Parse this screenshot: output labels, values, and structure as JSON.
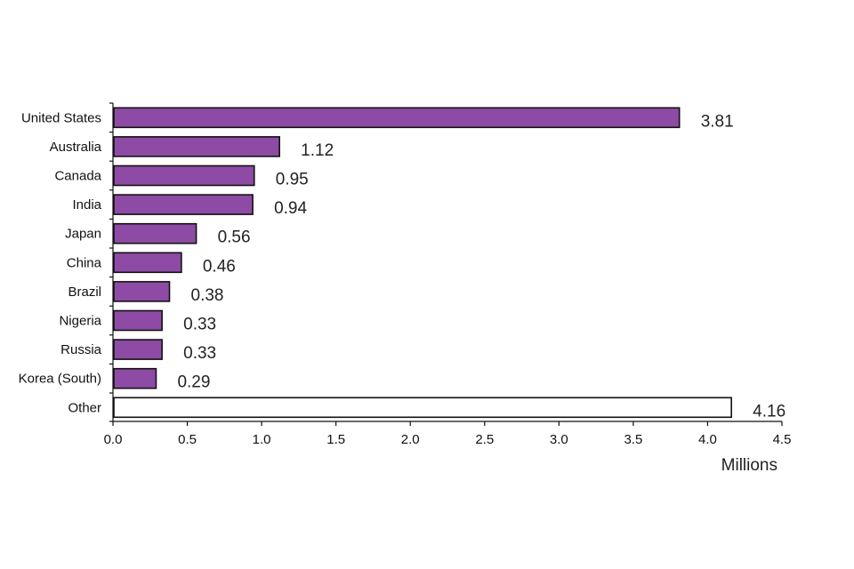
{
  "chart_data": {
    "type": "bar",
    "orientation": "horizontal",
    "categories": [
      "United States",
      "Australia",
      "Canada",
      "India",
      "Japan",
      "China",
      "Brazil",
      "Nigeria",
      "Russia",
      "Korea (South)",
      "Other"
    ],
    "values": [
      3.81,
      1.12,
      0.95,
      0.94,
      0.56,
      0.46,
      0.38,
      0.33,
      0.33,
      0.29,
      4.16
    ],
    "value_labels": [
      "3.81",
      "1.12",
      "0.95",
      "0.94",
      "0.56",
      "0.46",
      "0.38",
      "0.33",
      "0.33",
      "0.29",
      "4.16"
    ],
    "bar_colors": [
      "#8e4ba5",
      "#8e4ba5",
      "#8e4ba5",
      "#8e4ba5",
      "#8e4ba5",
      "#8e4ba5",
      "#8e4ba5",
      "#8e4ba5",
      "#8e4ba5",
      "#8e4ba5",
      "#ffffff"
    ],
    "x_ticks": [
      "0.0",
      "0.5",
      "1.0",
      "1.5",
      "2.0",
      "2.5",
      "3.0",
      "3.5",
      "4.0",
      "4.5"
    ],
    "xlim": [
      0,
      4.5
    ],
    "xlabel": "Millions",
    "title": "",
    "grid": false
  }
}
